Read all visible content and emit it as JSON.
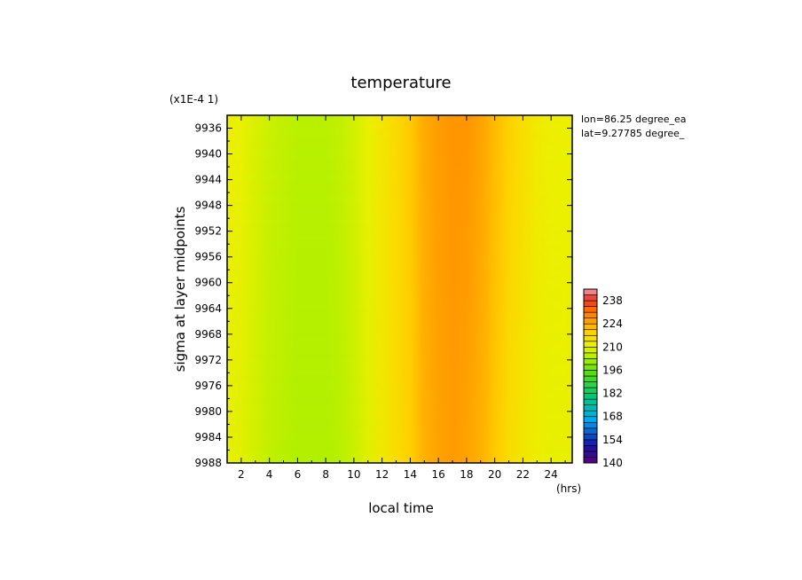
{
  "chart_data": {
    "type": "heatmap",
    "title": "temperature",
    "xlabel": "local time",
    "xunits": "(hrs)",
    "ylabel": "sigma at layer midpoints",
    "yscale_note": "(x1E-4 1)",
    "xlim": [
      1,
      25.5
    ],
    "ylim": [
      9934,
      9988
    ],
    "x_ticks": [
      2,
      4,
      6,
      8,
      10,
      12,
      14,
      16,
      18,
      20,
      22,
      24
    ],
    "y_ticks": [
      9936,
      9940,
      9944,
      9948,
      9952,
      9956,
      9960,
      9964,
      9968,
      9972,
      9976,
      9980,
      9984,
      9988
    ],
    "annotations": [
      "lon=86.25 degree_ea",
      "lat=9.27785 degree_"
    ],
    "colorbar": {
      "min": 140,
      "max": 245,
      "tick_labels": [
        140,
        154,
        168,
        182,
        196,
        210,
        224,
        238
      ]
    },
    "x_hours": [
      1,
      2,
      3,
      4,
      5,
      6,
      7,
      8,
      9,
      10,
      11,
      12,
      13,
      14,
      15,
      16,
      17,
      18,
      19,
      20,
      21,
      22,
      23,
      24,
      25,
      25.5
    ],
    "temperature_top": [
      212,
      211,
      209,
      207,
      206,
      205,
      205,
      205,
      206,
      208,
      211,
      214,
      217,
      220,
      224,
      226,
      227,
      227,
      225,
      222,
      219,
      216,
      213,
      212,
      211.5,
      211
    ],
    "temperature_bottom": [
      211,
      210,
      208,
      206,
      205,
      204,
      204,
      204,
      205,
      207,
      210,
      213,
      216,
      219,
      223,
      225,
      226,
      225,
      223,
      220,
      216,
      214,
      212,
      211,
      211,
      210.5
    ]
  }
}
